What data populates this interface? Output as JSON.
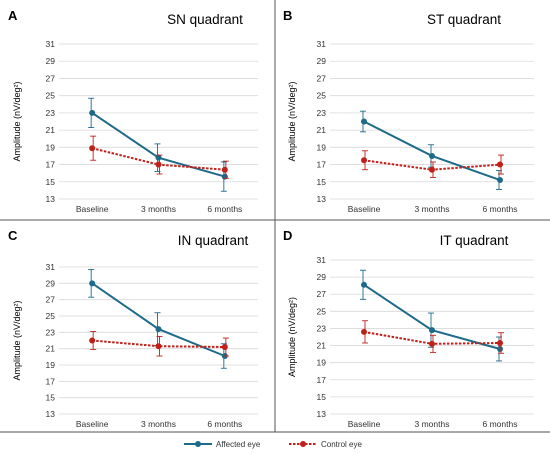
{
  "legend": {
    "affected_label": "Affected eye",
    "control_label": "Control eye"
  },
  "colors": {
    "affected": "#1e6a8a",
    "control": "#c0201a",
    "grid": "#d9d9d9",
    "divider": "#555555"
  },
  "chart_data": [
    {
      "type": "line",
      "letter": "A",
      "title": "SN quadrant",
      "ylabel": "Amplitude (nV/deg²)",
      "categories": [
        "Baseline",
        "3 months",
        "6 months"
      ],
      "ylim": [
        13,
        31
      ],
      "yticks": [
        13,
        15,
        17,
        19,
        21,
        23,
        25,
        27,
        29,
        31
      ],
      "grid": true,
      "series": [
        {
          "name": "Affected eye",
          "values": [
            23.0,
            17.8,
            15.6
          ],
          "errors": [
            1.7,
            1.6,
            1.7
          ]
        },
        {
          "name": "Control eye",
          "values": [
            18.9,
            17.0,
            16.4
          ],
          "errors": [
            1.4,
            1.1,
            1.0
          ]
        }
      ]
    },
    {
      "type": "line",
      "letter": "B",
      "title": "ST quadrant",
      "ylabel": "Amplitude (nV/deg²)",
      "categories": [
        "Baseline",
        "3 months",
        "6 months"
      ],
      "ylim": [
        13,
        31
      ],
      "yticks": [
        13,
        15,
        17,
        19,
        21,
        23,
        25,
        27,
        29,
        31
      ],
      "grid": true,
      "series": [
        {
          "name": "Affected eye",
          "values": [
            22.0,
            18.0,
            15.2
          ],
          "errors": [
            1.2,
            1.3,
            1.1
          ]
        },
        {
          "name": "Control eye",
          "values": [
            17.5,
            16.4,
            17.0
          ],
          "errors": [
            1.1,
            0.9,
            1.1
          ]
        }
      ]
    },
    {
      "type": "line",
      "letter": "C",
      "title": "IN quadrant",
      "ylabel": "Amplitude (nV/deg²)",
      "categories": [
        "Baseline",
        "3 months",
        "6 months"
      ],
      "ylim": [
        13,
        31
      ],
      "yticks": [
        13,
        15,
        17,
        19,
        21,
        23,
        25,
        27,
        29,
        31
      ],
      "grid": true,
      "series": [
        {
          "name": "Affected eye",
          "values": [
            29.0,
            23.4,
            20.1
          ],
          "errors": [
            1.7,
            2.0,
            1.5
          ]
        },
        {
          "name": "Control eye",
          "values": [
            22.0,
            21.3,
            21.2
          ],
          "errors": [
            1.1,
            1.2,
            1.1
          ]
        }
      ]
    },
    {
      "type": "line",
      "letter": "D",
      "title": "IT quadrant",
      "ylabel": "Amplitude (nV/deg²)",
      "categories": [
        "Baseline",
        "3 months",
        "6 months"
      ],
      "ylim": [
        13,
        31
      ],
      "yticks": [
        13,
        15,
        17,
        19,
        21,
        23,
        25,
        27,
        29,
        31
      ],
      "grid": true,
      "series": [
        {
          "name": "Affected eye",
          "values": [
            28.1,
            22.8,
            20.6
          ],
          "errors": [
            1.7,
            2.0,
            1.4
          ]
        },
        {
          "name": "Control eye",
          "values": [
            22.6,
            21.2,
            21.3
          ],
          "errors": [
            1.3,
            1.0,
            1.2
          ]
        }
      ]
    }
  ]
}
